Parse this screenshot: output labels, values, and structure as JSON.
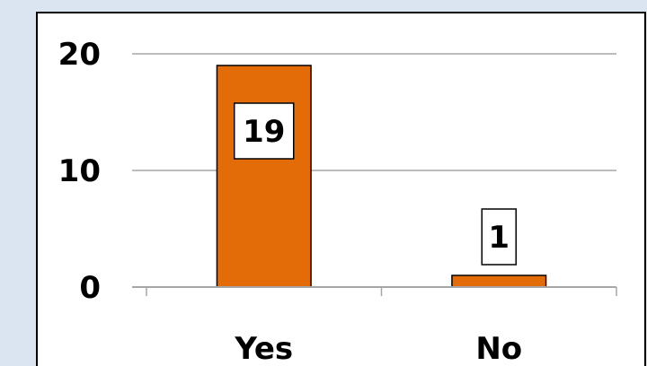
{
  "chart_data": {
    "type": "bar",
    "title": "",
    "xlabel": "",
    "ylabel": "",
    "categories": [
      "Yes",
      "No"
    ],
    "values": [
      19,
      1
    ],
    "ylim": [
      0,
      20
    ],
    "yticks": [
      0,
      10,
      20
    ],
    "grid": true,
    "legend": "none",
    "colors": {
      "bar_fill": "#e36c09",
      "bar_stroke": "#000000",
      "gridline": "#a6a6a6",
      "plot_background": "#ffffff",
      "page_background": "#dbe5f1",
      "frame": "#000000"
    }
  }
}
